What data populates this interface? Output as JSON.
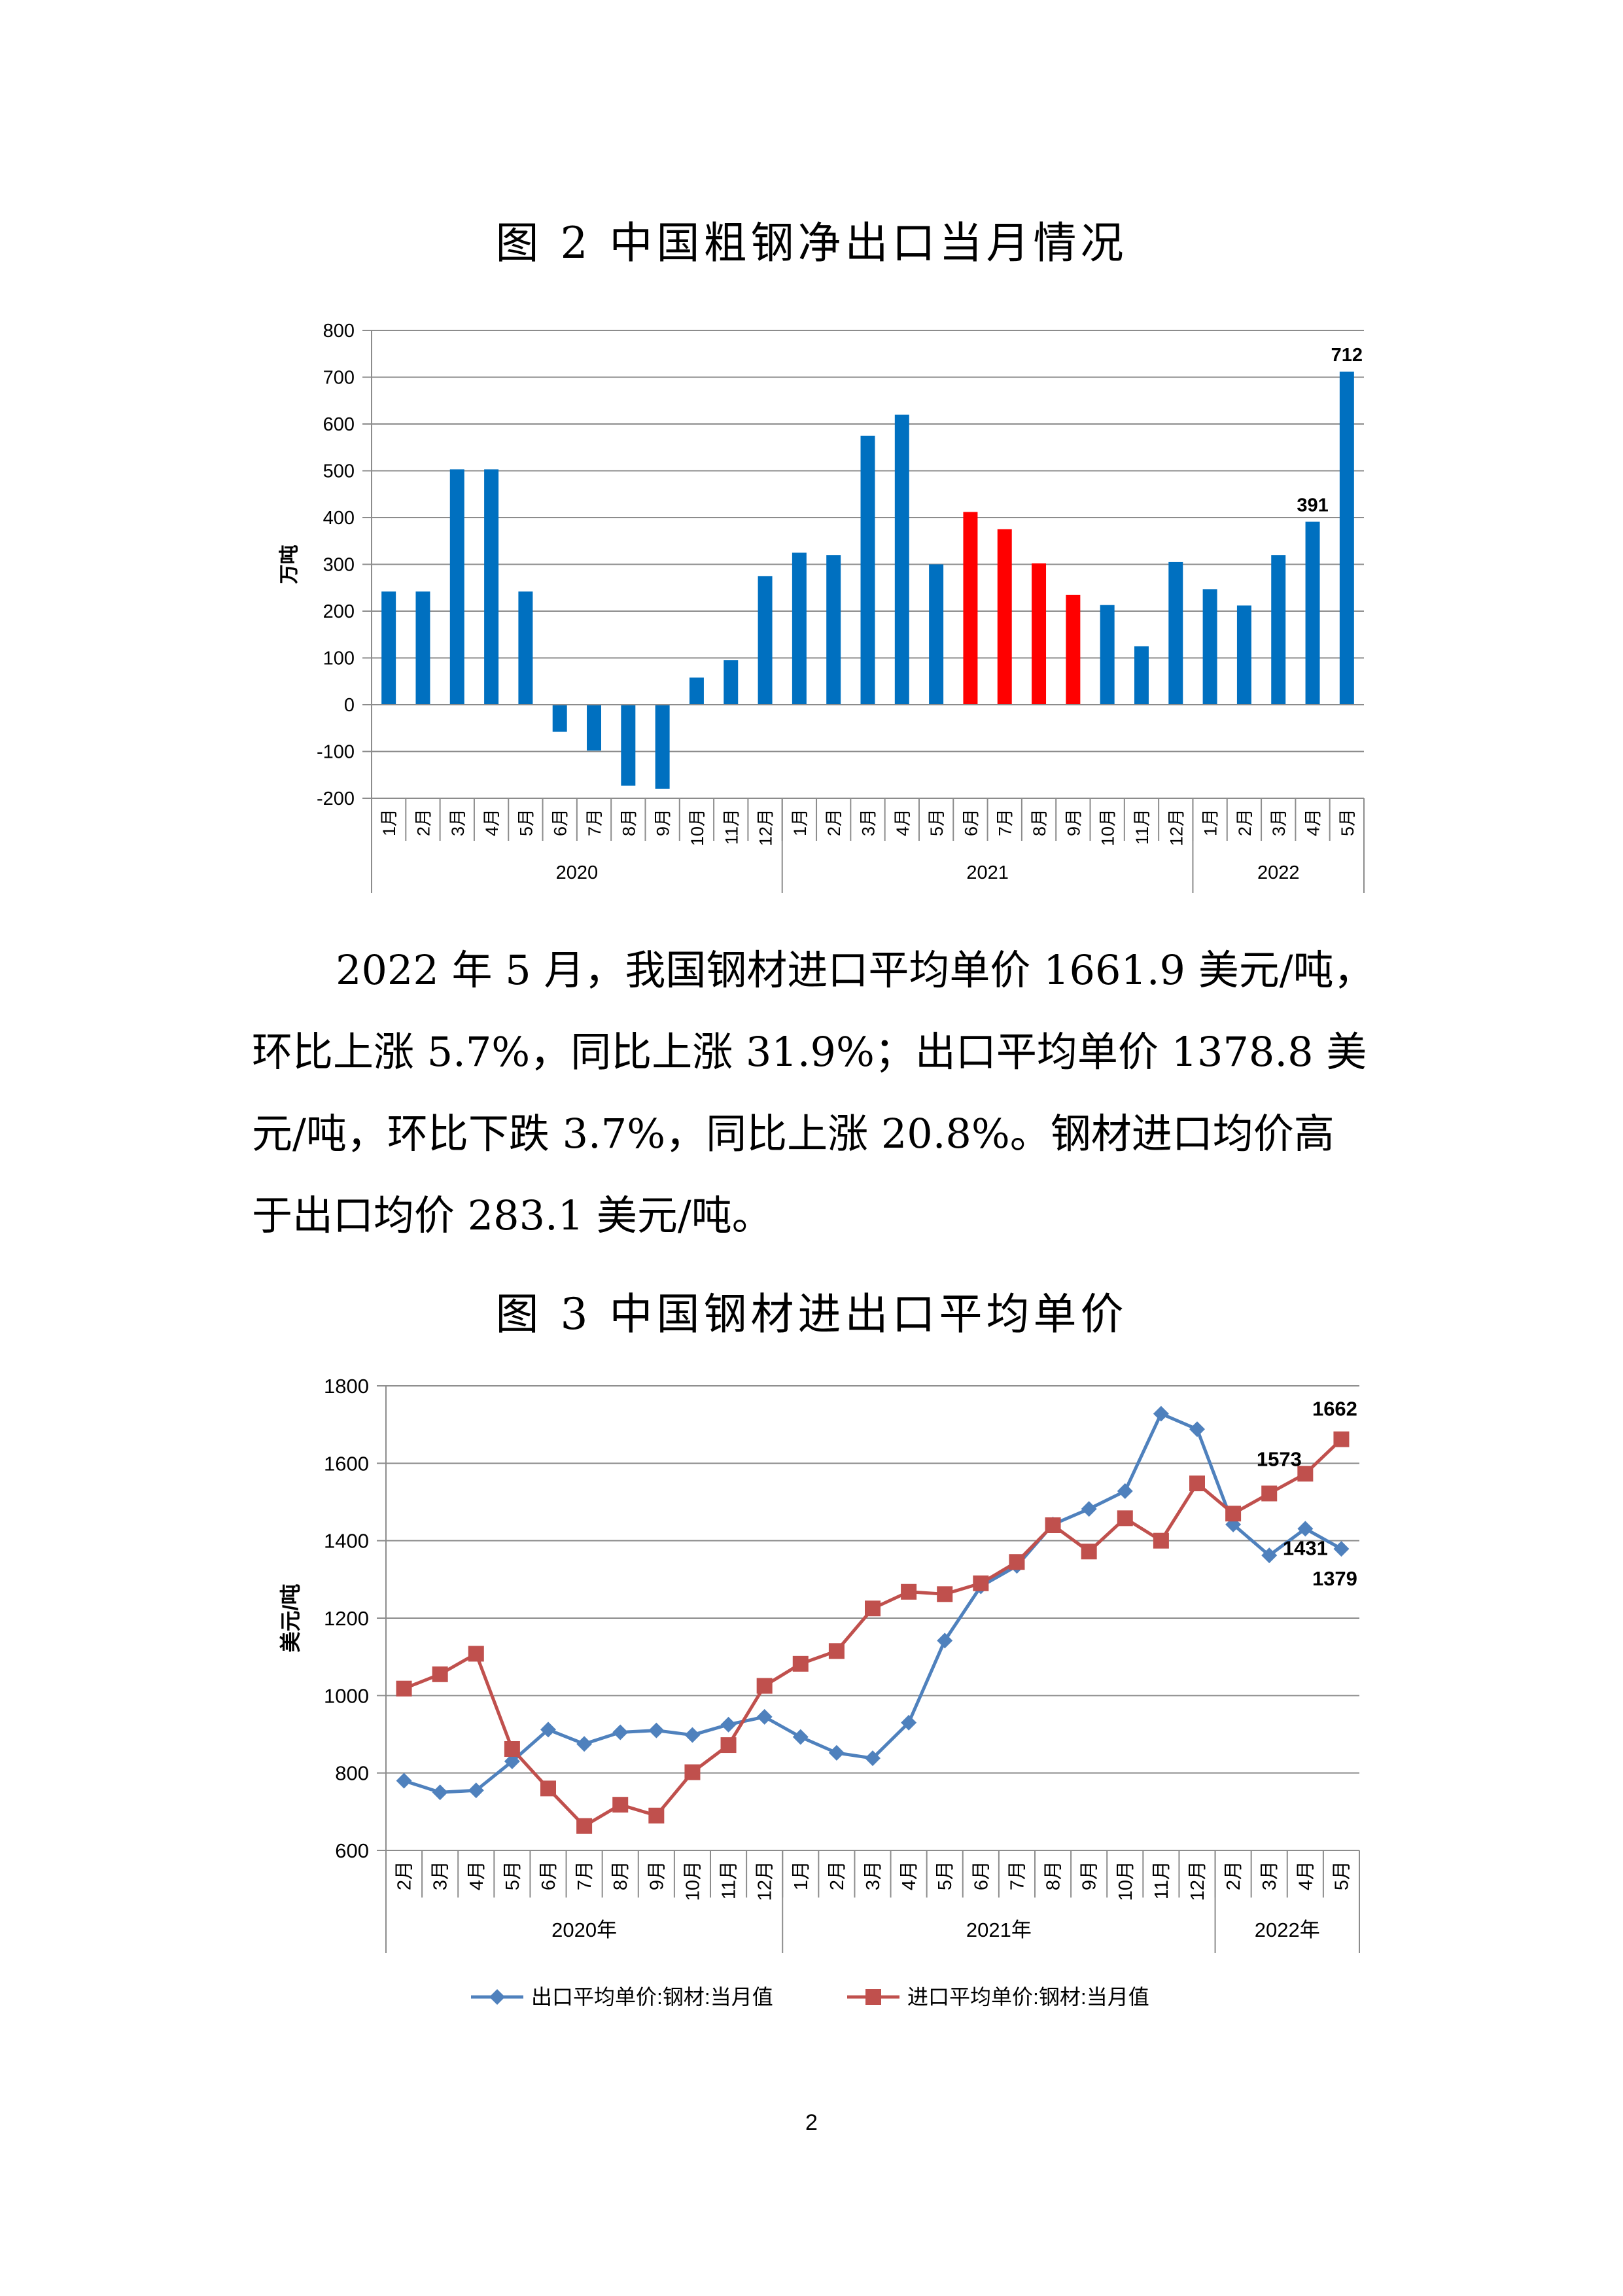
{
  "fig2": {
    "title": "图 2  中国粗钢净出口当月情况",
    "chart_data": {
      "type": "bar",
      "title": "图 2  中国粗钢净出口当月情况",
      "ylabel": "万吨",
      "ylim": [
        -200,
        800
      ],
      "yticks": [
        -200,
        -100,
        0,
        100,
        200,
        300,
        400,
        500,
        600,
        700,
        800
      ],
      "grid": true,
      "groups": [
        {
          "label": "2020",
          "count": 12
        },
        {
          "label": "2021",
          "count": 12
        },
        {
          "label": "2022",
          "count": 5
        }
      ],
      "categories": [
        "1月",
        "2月",
        "3月",
        "4月",
        "5月",
        "6月",
        "7月",
        "8月",
        "9月",
        "10月",
        "11月",
        "12月",
        "1月",
        "2月",
        "3月",
        "4月",
        "5月",
        "6月",
        "7月",
        "8月",
        "9月",
        "10月",
        "11月",
        "12月",
        "1月",
        "2月",
        "3月",
        "4月",
        "5月"
      ],
      "values": [
        242,
        242,
        503,
        503,
        242,
        -58,
        -98,
        -173,
        -180,
        58,
        95,
        275,
        325,
        320,
        575,
        620,
        300,
        412,
        375,
        302,
        235,
        213,
        125,
        305,
        247,
        212,
        320,
        391,
        712
      ],
      "highlight_color": "#ff0000",
      "highlight_indices": [
        17,
        18,
        19,
        20
      ],
      "bar_color": "#0070c0",
      "data_labels": [
        {
          "index": 27,
          "text": "391"
        },
        {
          "index": 28,
          "text": "712"
        }
      ]
    }
  },
  "paragraph": {
    "line1": "2022 年 5 月，我国钢材进口平均单价 1661.9 美元/吨，",
    "line2": "环比上涨 5.7%，同比上涨 31.9%；出口平均单价 1378.8 美",
    "line3": "元/吨，环比下跌 3.7%，同比上涨 20.8%。钢材进口均价高",
    "line4": "于出口均价 283.1 美元/吨。"
  },
  "fig3": {
    "title": "图 3  中国钢材进出口平均单价",
    "chart_data": {
      "type": "line",
      "title": "图 3  中国钢材进出口平均单价",
      "ylabel": "美元/吨",
      "ylim": [
        600,
        1800
      ],
      "yticks": [
        600,
        800,
        1000,
        1200,
        1400,
        1600,
        1800
      ],
      "grid": true,
      "legend_position": "bottom",
      "groups": [
        {
          "label": "2020年",
          "count": 11
        },
        {
          "label": "2021年",
          "count": 12
        },
        {
          "label": "2022年",
          "count": 4
        }
      ],
      "categories": [
        "2月",
        "3月",
        "4月",
        "5月",
        "6月",
        "7月",
        "8月",
        "9月",
        "10月",
        "11月",
        "12月",
        "1月",
        "2月",
        "3月",
        "4月",
        "5月",
        "6月",
        "7月",
        "8月",
        "9月",
        "10月",
        "11月",
        "12月",
        "2月",
        "3月",
        "4月",
        "5月"
      ],
      "series": [
        {
          "name": "出口平均单价:钢材:当月值",
          "color": "#4f81bd",
          "marker": "diamond",
          "values": [
            780,
            750,
            755,
            830,
            912,
            875,
            905,
            910,
            898,
            925,
            945,
            893,
            852,
            838,
            930,
            1142,
            1282,
            1335,
            1442,
            1482,
            1528,
            1728,
            1688,
            1442,
            1362,
            1431,
            1379
          ]
        },
        {
          "name": "进口平均单价:钢材:当月值",
          "color": "#c0504d",
          "marker": "square",
          "values": [
            1018,
            1055,
            1108,
            862,
            760,
            663,
            718,
            690,
            802,
            872,
            1025,
            1082,
            1115,
            1225,
            1268,
            1262,
            1290,
            1345,
            1440,
            1372,
            1458,
            1400,
            1548,
            1470,
            1522,
            1573,
            1662
          ]
        }
      ],
      "data_labels": [
        {
          "series": 1,
          "index": 26,
          "text": "1662"
        },
        {
          "series": 1,
          "index": 25,
          "text": "1573"
        },
        {
          "series": 0,
          "index": 25,
          "text": "1431"
        },
        {
          "series": 0,
          "index": 26,
          "text": "1379"
        }
      ]
    }
  },
  "page_number": "2"
}
